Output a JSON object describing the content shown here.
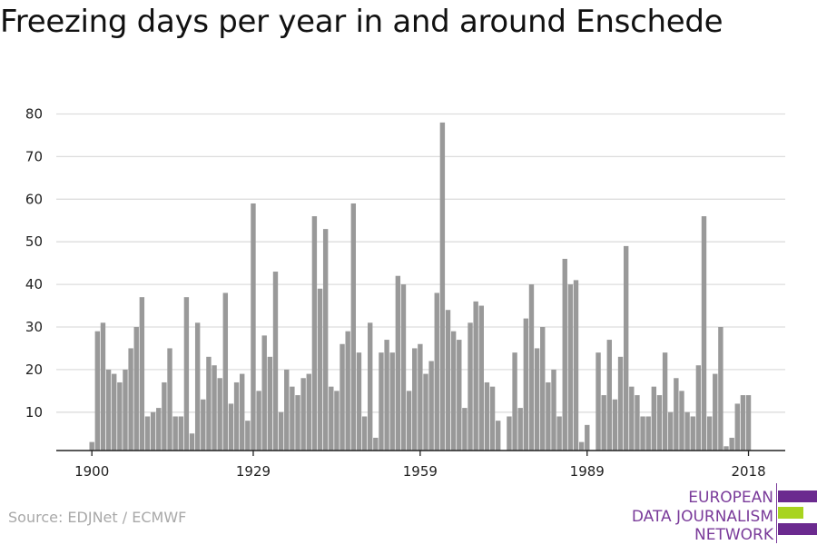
{
  "title": "Freezing days per year in and around Enschede",
  "source": "Source: EDJNet / ECMWF",
  "logo": {
    "lines": [
      "EUROPEAN",
      "DATA JOURNALISM",
      "NETWORK"
    ],
    "colors": {
      "purple": "#6b2a8f",
      "green": "#a8d41f"
    }
  },
  "colors": {
    "bar": "#999999",
    "grid": "#dddddd",
    "axis": "#222222",
    "tick_text": "#222222"
  },
  "chart_data": {
    "type": "bar",
    "title": "Freezing days per year in and around Enschede",
    "xlabel": "",
    "ylabel": "",
    "ylim": [
      1,
      82
    ],
    "y_ticks": [
      10,
      20,
      30,
      40,
      50,
      60,
      70,
      80
    ],
    "x_ticks": [
      1900,
      1929,
      1959,
      1989,
      2018
    ],
    "grid": "horizontal",
    "x": [
      1900,
      1901,
      1902,
      1903,
      1904,
      1905,
      1906,
      1907,
      1908,
      1909,
      1910,
      1911,
      1912,
      1913,
      1914,
      1915,
      1916,
      1917,
      1918,
      1919,
      1920,
      1921,
      1922,
      1923,
      1924,
      1925,
      1926,
      1927,
      1928,
      1929,
      1930,
      1931,
      1932,
      1933,
      1934,
      1935,
      1936,
      1937,
      1938,
      1939,
      1940,
      1941,
      1942,
      1943,
      1944,
      1945,
      1946,
      1947,
      1948,
      1949,
      1950,
      1951,
      1952,
      1953,
      1954,
      1955,
      1956,
      1957,
      1958,
      1959,
      1960,
      1961,
      1962,
      1963,
      1964,
      1965,
      1966,
      1967,
      1968,
      1969,
      1970,
      1971,
      1972,
      1973,
      1974,
      1975,
      1976,
      1977,
      1978,
      1979,
      1980,
      1981,
      1982,
      1983,
      1984,
      1985,
      1986,
      1987,
      1988,
      1989,
      1990,
      1991,
      1992,
      1993,
      1994,
      1995,
      1996,
      1997,
      1998,
      1999,
      2000,
      2001,
      2002,
      2003,
      2004,
      2005,
      2006,
      2007,
      2008,
      2009,
      2010,
      2011,
      2012,
      2013,
      2014,
      2015,
      2016,
      2017,
      2018
    ],
    "values": [
      3,
      29,
      31,
      20,
      19,
      17,
      20,
      25,
      30,
      37,
      9,
      10,
      11,
      17,
      25,
      9,
      9,
      37,
      5,
      31,
      13,
      23,
      21,
      18,
      38,
      12,
      17,
      19,
      8,
      59,
      15,
      28,
      23,
      43,
      10,
      20,
      16,
      14,
      18,
      19,
      56,
      39,
      53,
      16,
      15,
      26,
      29,
      59,
      24,
      9,
      31,
      4,
      24,
      27,
      24,
      42,
      40,
      15,
      25,
      26,
      19,
      22,
      38,
      78,
      34,
      29,
      27,
      11,
      31,
      36,
      35,
      17,
      16,
      8,
      0,
      9,
      24,
      11,
      32,
      40,
      25,
      30,
      17,
      20,
      9,
      46,
      40,
      41,
      3,
      7,
      0,
      24,
      14,
      27,
      13,
      23,
      49,
      16,
      14,
      9,
      9,
      16,
      14,
      24,
      10,
      18,
      15,
      10,
      9,
      21,
      56,
      9,
      19,
      30,
      2,
      4,
      12,
      14,
      14
    ]
  }
}
